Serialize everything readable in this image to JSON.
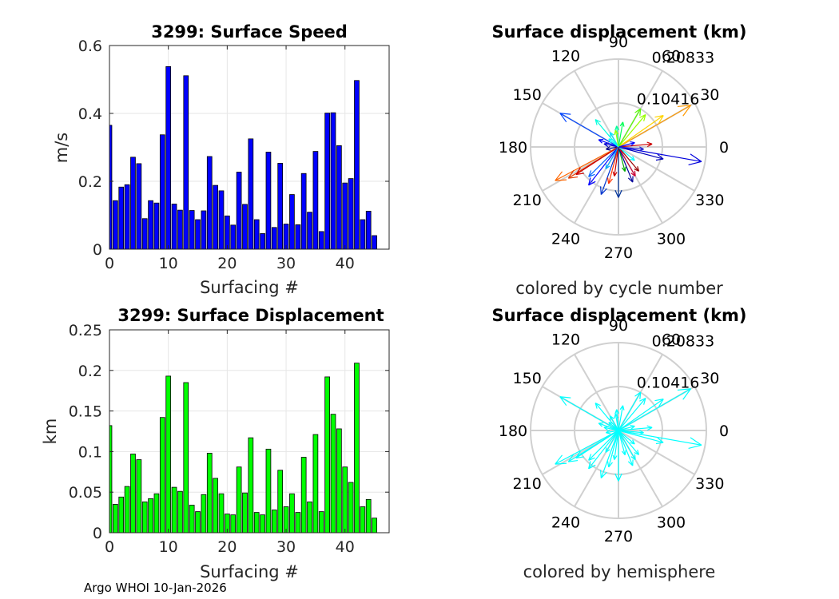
{
  "chart_data": [
    {
      "type": "bar",
      "title": "3299: Surface Speed",
      "xlabel": "Surfacing #",
      "ylabel": "m/s",
      "xlim": [
        0,
        47.5
      ],
      "ylim": [
        0,
        0.6
      ],
      "xticks": [
        "0",
        "10",
        "20",
        "30",
        "40"
      ],
      "yticks": [
        "0",
        "0.2",
        "0.4",
        "0.6"
      ],
      "bar_color": "#0000ff",
      "x": [
        0,
        1,
        2,
        3,
        4,
        5,
        6,
        7,
        8,
        9,
        10,
        11,
        12,
        13,
        14,
        15,
        16,
        17,
        18,
        19,
        20,
        21,
        22,
        23,
        24,
        25,
        26,
        27,
        28,
        29,
        30,
        31,
        32,
        33,
        34,
        35,
        36,
        37,
        38,
        39,
        40,
        41,
        42,
        43,
        44,
        45
      ],
      "values": [
        0.365,
        0.143,
        0.183,
        0.19,
        0.271,
        0.252,
        0.09,
        0.143,
        0.136,
        0.337,
        0.538,
        0.133,
        0.115,
        0.511,
        0.114,
        0.087,
        0.113,
        0.273,
        0.188,
        0.172,
        0.098,
        0.071,
        0.227,
        0.132,
        0.325,
        0.087,
        0.046,
        0.286,
        0.064,
        0.253,
        0.074,
        0.161,
        0.072,
        0.223,
        0.109,
        0.288,
        0.052,
        0.401,
        0.402,
        0.305,
        0.195,
        0.208,
        0.497,
        0.087,
        0.112,
        0.04
      ]
    },
    {
      "type": "bar",
      "title": "3299: Surface Displacement",
      "xlabel": "Surfacing #",
      "ylabel": "km",
      "xlim": [
        0,
        47.5
      ],
      "ylim": [
        0,
        0.25
      ],
      "xticks": [
        "0",
        "10",
        "20",
        "30",
        "40"
      ],
      "yticks": [
        "0",
        "0.05",
        "0.1",
        "0.15",
        "0.2",
        "0.25"
      ],
      "bar_color": "#00ff00",
      "x": [
        0,
        1,
        2,
        3,
        4,
        5,
        6,
        7,
        8,
        9,
        10,
        11,
        12,
        13,
        14,
        15,
        16,
        17,
        18,
        19,
        20,
        21,
        22,
        23,
        24,
        25,
        26,
        27,
        28,
        29,
        30,
        31,
        32,
        33,
        34,
        35,
        36,
        37,
        38,
        39,
        40,
        41,
        42,
        43,
        44,
        45
      ],
      "values": [
        0.132,
        0.035,
        0.044,
        0.057,
        0.097,
        0.09,
        0.038,
        0.042,
        0.048,
        0.142,
        0.193,
        0.056,
        0.051,
        0.185,
        0.034,
        0.026,
        0.047,
        0.098,
        0.067,
        0.048,
        0.023,
        0.022,
        0.081,
        0.049,
        0.117,
        0.025,
        0.022,
        0.103,
        0.028,
        0.077,
        0.032,
        0.048,
        0.025,
        0.093,
        0.038,
        0.121,
        0.026,
        0.192,
        0.146,
        0.128,
        0.081,
        0.062,
        0.209,
        0.032,
        0.041,
        0.018
      ]
    },
    {
      "type": "polar-compass",
      "title": "Surface displacement (km)",
      "subtitle": "colored by cycle number",
      "rmax": 0.20833,
      "rings": [
        "0.10416",
        "0.20833"
      ],
      "angle_labels": [
        "0",
        "30",
        "60",
        "90",
        "120",
        "150",
        "180",
        "210",
        "240",
        "270",
        "300",
        "330"
      ],
      "vectors": [
        {
          "dir": 30,
          "mag": 0.198,
          "color": "#ff9900"
        },
        {
          "dir": 35,
          "mag": 0.13,
          "color": "#ffd400"
        },
        {
          "dir": 50,
          "mag": 0.1,
          "color": "#99ff00"
        },
        {
          "dir": 60,
          "mag": 0.105,
          "color": "#55ff00"
        },
        {
          "dir": 80,
          "mag": 0.06,
          "color": "#00ff55"
        },
        {
          "dir": 95,
          "mag": 0.05,
          "color": "#00ff99"
        },
        {
          "dir": 130,
          "mag": 0.085,
          "color": "#00ffdd"
        },
        {
          "dir": 120,
          "mag": 0.04,
          "color": "#00e5ff"
        },
        {
          "dir": 150,
          "mag": 0.16,
          "color": "#0044ff"
        },
        {
          "dir": 160,
          "mag": 0.05,
          "color": "#0000ff"
        },
        {
          "dir": 168,
          "mag": 0.035,
          "color": "#0000cc"
        },
        {
          "dir": 190,
          "mag": 0.03,
          "color": "#000088"
        },
        {
          "dir": 208,
          "mag": 0.17,
          "color": "#ff6600"
        },
        {
          "dir": 212,
          "mag": 0.14,
          "color": "#e23b00"
        },
        {
          "dir": 213,
          "mag": 0.12,
          "color": "#cc0000"
        },
        {
          "dir": 225,
          "mag": 0.1,
          "color": "#0066ff"
        },
        {
          "dir": 232,
          "mag": 0.115,
          "color": "#0000ff"
        },
        {
          "dir": 250,
          "mag": 0.12,
          "color": "#0033cc"
        },
        {
          "dir": 240,
          "mag": 0.06,
          "color": "#00aaff"
        },
        {
          "dir": 255,
          "mag": 0.09,
          "color": "#ff3300"
        },
        {
          "dir": 262,
          "mag": 0.07,
          "color": "#cc0000"
        },
        {
          "dir": 285,
          "mag": 0.06,
          "color": "#00aa00"
        },
        {
          "dir": 292,
          "mag": 0.09,
          "color": "#000099"
        },
        {
          "dir": 300,
          "mag": 0.08,
          "color": "#cc0033"
        },
        {
          "dir": 310,
          "mag": 0.075,
          "color": "#990000"
        },
        {
          "dir": 320,
          "mag": 0.05,
          "color": "#00ffff"
        },
        {
          "dir": 345,
          "mag": 0.11,
          "color": "#0000bb"
        },
        {
          "dir": 350,
          "mag": 0.2,
          "color": "#0000dd"
        },
        {
          "dir": 5,
          "mag": 0.08,
          "color": "#cc0000"
        },
        {
          "dir": 15,
          "mag": 0.04,
          "color": "#0000ff"
        },
        {
          "dir": 355,
          "mag": 0.06,
          "color": "#2222cc"
        },
        {
          "dir": 270,
          "mag": 0.12,
          "color": "#003399"
        },
        {
          "dir": 100,
          "mag": 0.04,
          "color": "#99ff00"
        },
        {
          "dir": 140,
          "mag": 0.03,
          "color": "#00ffff"
        }
      ]
    },
    {
      "type": "polar-compass",
      "title": "Surface displacement (km)",
      "subtitle": "colored by hemisphere",
      "rmax": 0.20833,
      "rings": [
        "0.10416",
        "0.20833"
      ],
      "angle_labels": [
        "0",
        "30",
        "60",
        "90",
        "120",
        "150",
        "180",
        "210",
        "240",
        "270",
        "300",
        "330"
      ],
      "color": "#00ffff",
      "vectors": [
        {
          "dir": 30,
          "mag": 0.198
        },
        {
          "dir": 35,
          "mag": 0.13
        },
        {
          "dir": 50,
          "mag": 0.1
        },
        {
          "dir": 60,
          "mag": 0.105
        },
        {
          "dir": 80,
          "mag": 0.06
        },
        {
          "dir": 95,
          "mag": 0.05
        },
        {
          "dir": 130,
          "mag": 0.085
        },
        {
          "dir": 120,
          "mag": 0.04
        },
        {
          "dir": 150,
          "mag": 0.16
        },
        {
          "dir": 160,
          "mag": 0.05
        },
        {
          "dir": 168,
          "mag": 0.035
        },
        {
          "dir": 190,
          "mag": 0.03
        },
        {
          "dir": 208,
          "mag": 0.17
        },
        {
          "dir": 212,
          "mag": 0.14
        },
        {
          "dir": 213,
          "mag": 0.12
        },
        {
          "dir": 225,
          "mag": 0.1
        },
        {
          "dir": 232,
          "mag": 0.115
        },
        {
          "dir": 250,
          "mag": 0.12
        },
        {
          "dir": 240,
          "mag": 0.06
        },
        {
          "dir": 255,
          "mag": 0.09
        },
        {
          "dir": 262,
          "mag": 0.07
        },
        {
          "dir": 285,
          "mag": 0.06
        },
        {
          "dir": 292,
          "mag": 0.09
        },
        {
          "dir": 300,
          "mag": 0.08
        },
        {
          "dir": 310,
          "mag": 0.075
        },
        {
          "dir": 320,
          "mag": 0.05
        },
        {
          "dir": 345,
          "mag": 0.11
        },
        {
          "dir": 350,
          "mag": 0.2
        },
        {
          "dir": 5,
          "mag": 0.08
        },
        {
          "dir": 15,
          "mag": 0.04
        },
        {
          "dir": 355,
          "mag": 0.06
        },
        {
          "dir": 270,
          "mag": 0.12
        },
        {
          "dir": 100,
          "mag": 0.04
        },
        {
          "dir": 140,
          "mag": 0.03
        }
      ]
    }
  ],
  "footer": "Argo WHOI 10-Jan-2026"
}
